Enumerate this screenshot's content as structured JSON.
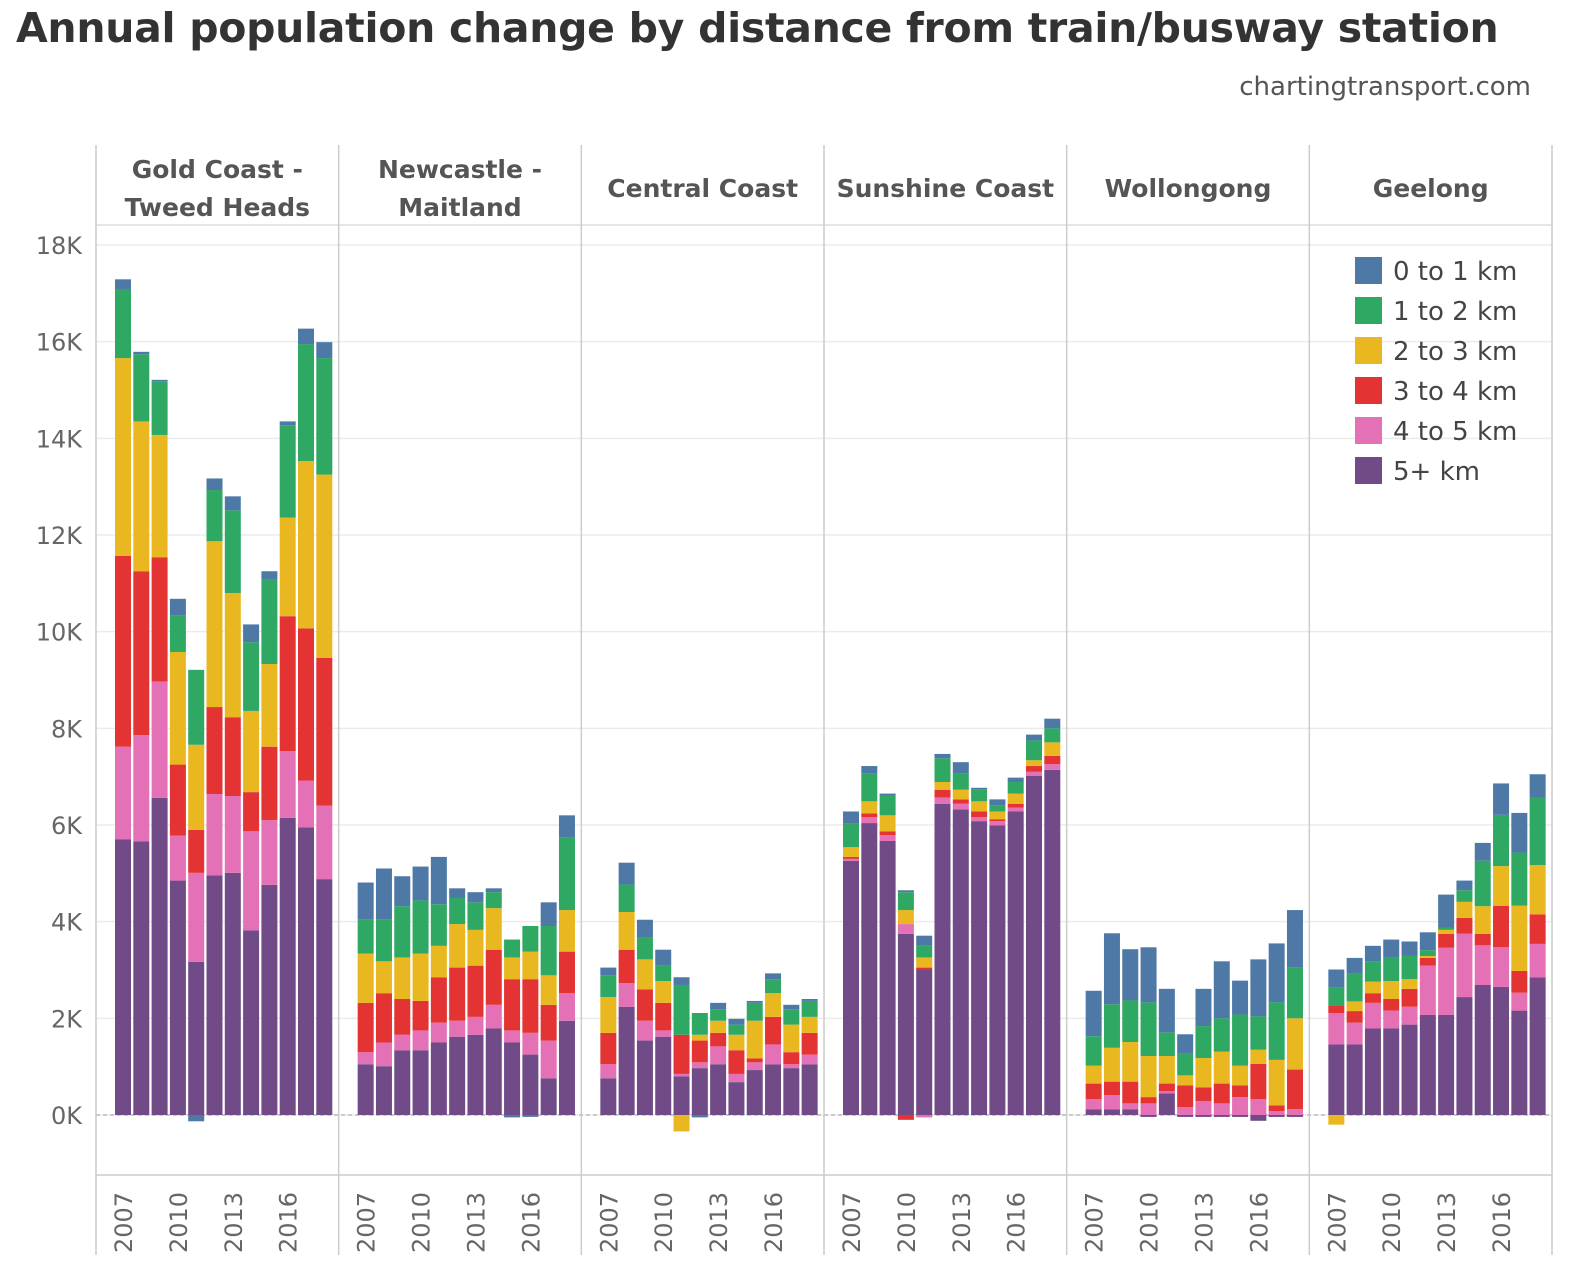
{
  "title": "Annual population change by distance from train/busway station",
  "source": "chartingtransport.com",
  "chart_data": {
    "type": "bar",
    "stacked": true,
    "faceted": true,
    "title": "Annual population change by distance from train/busway station",
    "unit": "thousands",
    "categories": [
      2007,
      2008,
      2009,
      2010,
      2011,
      2012,
      2013,
      2014,
      2015,
      2016,
      2017,
      2018
    ],
    "x_tick_labels": [
      "2007",
      "2010",
      "2013",
      "2016"
    ],
    "y_ticks": [
      0,
      2,
      4,
      6,
      8,
      10,
      12,
      14,
      16,
      18
    ],
    "y_tick_labels": [
      "0K",
      "2K",
      "4K",
      "6K",
      "8K",
      "10K",
      "12K",
      "14K",
      "16K",
      "18K"
    ],
    "ylim": [
      -1.24,
      18.4
    ],
    "grid": true,
    "legend_position": "top-right",
    "legend": [
      "0 to 1 km",
      "1 to 2 km",
      "2 to 3 km",
      "3 to 4 km",
      "4 to 5 km",
      "5+ km"
    ],
    "colors": {
      "0 to 1 km": "#4e79a7",
      "1 to 2 km": "#2ea862",
      "2 to 3 km": "#e9b820",
      "3 to 4 km": "#e33333",
      "4 to 5 km": "#e471b5",
      "5+ km": "#714b88"
    },
    "panels": [
      {
        "name": "Gold Coast - Tweed Heads",
        "lines": [
          "Gold Coast -",
          "Tweed Heads"
        ],
        "series": [
          {
            "name": "0 to 1 km",
            "values": [
              0.2,
              0.05,
              0.03,
              0.35,
              -0.13,
              0.24,
              0.29,
              0.37,
              0.16,
              0.08,
              0.32,
              0.33
            ]
          },
          {
            "name": "1 to 2 km",
            "values": [
              1.43,
              1.39,
              1.11,
              0.75,
              1.55,
              1.06,
              1.71,
              1.42,
              1.76,
              1.91,
              2.42,
              2.41
            ]
          },
          {
            "name": "2 to 3 km",
            "values": [
              4.09,
              3.1,
              2.53,
              2.33,
              1.76,
              3.43,
              2.57,
              1.68,
              1.71,
              2.04,
              3.46,
              3.79
            ]
          },
          {
            "name": "3 to 4 km",
            "values": [
              3.95,
              3.39,
              2.57,
              1.47,
              0.89,
              1.8,
              1.63,
              0.81,
              1.52,
              2.79,
              3.15,
              3.06
            ]
          },
          {
            "name": "4 to 5 km",
            "values": [
              1.92,
              2.2,
              2.41,
              0.93,
              1.84,
              1.68,
              1.59,
              2.05,
              1.34,
              1.38,
              0.97,
              1.52
            ]
          },
          {
            "name": "5+ km",
            "values": [
              5.7,
              5.66,
              6.56,
              4.85,
              3.17,
              4.96,
              5.01,
              3.82,
              4.76,
              6.15,
              5.95,
              4.88
            ]
          }
        ]
      },
      {
        "name": "Newcastle - Maitland",
        "lines": [
          "Newcastle -",
          "Maitland"
        ],
        "series": [
          {
            "name": "0 to 1 km",
            "values": [
              0.77,
              1.06,
              0.62,
              0.7,
              0.98,
              0.2,
              0.21,
              0.08,
              -0.05,
              -0.04,
              0.49,
              0.45
            ]
          },
          {
            "name": "1 to 2 km",
            "values": [
              0.7,
              0.86,
              1.06,
              1.1,
              0.86,
              0.54,
              0.57,
              0.33,
              0.37,
              0.53,
              1.02,
              1.51
            ]
          },
          {
            "name": "2 to 3 km",
            "values": [
              1.02,
              0.66,
              0.86,
              0.98,
              0.65,
              0.9,
              0.74,
              0.86,
              0.45,
              0.57,
              0.61,
              0.86
            ]
          },
          {
            "name": "3 to 4 km",
            "values": [
              1.02,
              1.02,
              0.74,
              0.61,
              0.94,
              1.1,
              1.06,
              1.14,
              1.06,
              1.11,
              0.74,
              0.86
            ]
          },
          {
            "name": "4 to 5 km",
            "values": [
              0.25,
              0.49,
              0.32,
              0.41,
              0.41,
              0.33,
              0.37,
              0.49,
              0.25,
              0.45,
              0.78,
              0.57
            ]
          },
          {
            "name": "5+ km",
            "values": [
              1.05,
              1.01,
              1.34,
              1.34,
              1.5,
              1.62,
              1.66,
              1.79,
              1.5,
              1.25,
              0.76,
              1.95
            ]
          }
        ]
      },
      {
        "name": "Central Coast",
        "lines": [
          "Central Coast"
        ],
        "series": [
          {
            "name": "0 to 1 km",
            "values": [
              0.16,
              0.45,
              0.37,
              0.33,
              0.16,
              -0.05,
              0.13,
              0.12,
              0.04,
              0.12,
              0.09,
              0.04
            ]
          },
          {
            "name": "1 to 2 km",
            "values": [
              0.45,
              0.57,
              0.45,
              0.32,
              1.03,
              0.45,
              0.24,
              0.21,
              0.37,
              0.29,
              0.32,
              0.33
            ]
          },
          {
            "name": "2 to 3 km",
            "values": [
              0.74,
              0.78,
              0.62,
              0.45,
              -0.34,
              0.12,
              0.25,
              0.32,
              0.78,
              0.49,
              0.57,
              0.33
            ]
          },
          {
            "name": "3 to 4 km",
            "values": [
              0.65,
              0.69,
              0.65,
              0.57,
              0.81,
              0.45,
              0.28,
              0.49,
              0.08,
              0.57,
              0.25,
              0.45
            ]
          },
          {
            "name": "4 to 5 km",
            "values": [
              0.29,
              0.49,
              0.41,
              0.13,
              0.05,
              0.12,
              0.37,
              0.17,
              0.16,
              0.41,
              0.08,
              0.2
            ]
          },
          {
            "name": "5+ km",
            "values": [
              0.76,
              2.24,
              1.54,
              1.62,
              0.8,
              0.97,
              1.05,
              0.68,
              0.93,
              1.05,
              0.97,
              1.05
            ]
          }
        ]
      },
      {
        "name": "Sunshine Coast",
        "lines": [
          "Sunshine Coast"
        ],
        "series": [
          {
            "name": "0 to 1 km",
            "values": [
              0.24,
              0.16,
              0.04,
              0.04,
              0.21,
              0.09,
              0.24,
              0.04,
              0.13,
              0.09,
              0.12,
              0.2
            ]
          },
          {
            "name": "1 to 2 km",
            "values": [
              0.5,
              0.57,
              0.41,
              0.37,
              0.24,
              0.49,
              0.33,
              0.24,
              0.12,
              0.24,
              0.41,
              0.29
            ]
          },
          {
            "name": "2 to 3 km",
            "values": [
              0.2,
              0.25,
              0.33,
              0.29,
              0.21,
              0.16,
              0.2,
              0.21,
              0.16,
              0.21,
              0.12,
              0.28
            ]
          },
          {
            "name": "3 to 4 km",
            "values": [
              0.04,
              0.08,
              0.08,
              -0.1,
              0.04,
              0.16,
              0.09,
              0.12,
              0.04,
              0.08,
              0.12,
              0.17
            ]
          },
          {
            "name": "4 to 5 km",
            "values": [
              0.04,
              0.12,
              0.12,
              0.2,
              -0.05,
              0.13,
              0.12,
              0.08,
              0.09,
              0.08,
              0.08,
              0.12
            ]
          },
          {
            "name": "5+ km",
            "values": [
              5.26,
              6.04,
              5.67,
              3.75,
              3.01,
              6.44,
              6.32,
              6.08,
              5.99,
              6.28,
              7.02,
              7.14
            ]
          }
        ]
      },
      {
        "name": "Wollongong",
        "lines": [
          "Wollongong"
        ],
        "series": [
          {
            "name": "0 to 1 km",
            "values": [
              0.94,
              1.47,
              1.06,
              1.14,
              0.9,
              0.4,
              0.77,
              1.18,
              0.7,
              1.18,
              1.22,
              1.18
            ]
          },
          {
            "name": "1 to 2 km",
            "values": [
              0.61,
              0.9,
              0.86,
              1.11,
              0.49,
              0.45,
              0.66,
              0.69,
              1.06,
              0.69,
              1.19,
              1.06
            ]
          },
          {
            "name": "2 to 3 km",
            "values": [
              0.37,
              0.7,
              0.82,
              0.85,
              0.57,
              0.21,
              0.61,
              0.66,
              0.41,
              0.29,
              0.94,
              1.06
            ]
          },
          {
            "name": "3 to 4 km",
            "values": [
              0.32,
              0.28,
              0.45,
              0.13,
              0.16,
              0.45,
              0.28,
              0.41,
              0.24,
              0.73,
              0.12,
              0.82
            ]
          },
          {
            "name": "4 to 5 km",
            "values": [
              0.21,
              0.29,
              0.12,
              0.24,
              0.04,
              0.16,
              0.29,
              0.24,
              0.37,
              0.33,
              0.08,
              0.12
            ]
          },
          {
            "name": "5+ km",
            "values": [
              0.12,
              0.12,
              0.12,
              -0.04,
              0.45,
              -0.04,
              -0.04,
              -0.04,
              -0.04,
              -0.12,
              -0.04,
              -0.04
            ]
          }
        ]
      },
      {
        "name": "Geelong",
        "lines": [
          "Geelong"
        ],
        "series": [
          {
            "name": "0 to 1 km",
            "values": [
              0.37,
              0.33,
              0.33,
              0.37,
              0.29,
              0.37,
              0.69,
              0.2,
              0.37,
              0.65,
              0.82,
              0.49
            ]
          },
          {
            "name": "1 to 2 km",
            "values": [
              0.37,
              0.57,
              0.41,
              0.49,
              0.49,
              0.12,
              0.04,
              0.24,
              0.94,
              1.06,
              1.1,
              1.39
            ]
          },
          {
            "name": "2 to 3 km",
            "values": [
              -0.2,
              0.2,
              0.24,
              0.37,
              0.2,
              0.04,
              0.08,
              0.33,
              0.57,
              0.82,
              1.35,
              1.02
            ]
          },
          {
            "name": "3 to 4 km",
            "values": [
              0.16,
              0.24,
              0.2,
              0.24,
              0.37,
              0.16,
              0.29,
              0.33,
              0.24,
              0.86,
              0.45,
              0.61
            ]
          },
          {
            "name": "4 to 5 km",
            "values": [
              0.65,
              0.45,
              0.53,
              0.37,
              0.37,
              1.02,
              1.39,
              1.31,
              0.82,
              0.82,
              0.37,
              0.69
            ]
          },
          {
            "name": "5+ km",
            "values": [
              1.46,
              1.46,
              1.79,
              1.79,
              1.87,
              2.07,
              2.07,
              2.44,
              2.69,
              2.65,
              2.16,
              2.85
            ]
          }
        ]
      }
    ]
  }
}
